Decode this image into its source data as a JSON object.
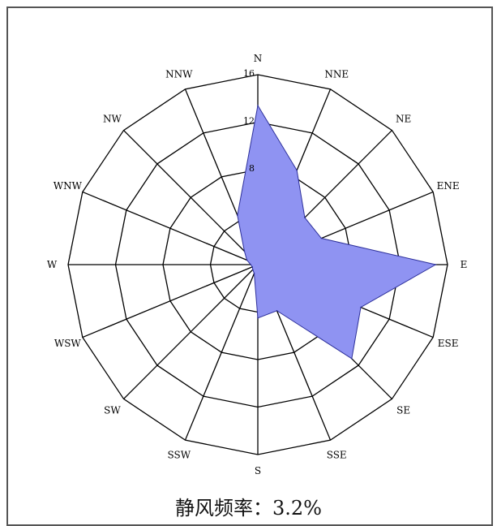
{
  "chart_data": {
    "type": "radar",
    "directions": [
      "N",
      "NNE",
      "NE",
      "ENE",
      "E",
      "ESE",
      "SE",
      "SSE",
      "S",
      "SSW",
      "SW",
      "WSW",
      "W",
      "WNW",
      "NW",
      "NNW"
    ],
    "values": [
      13.4,
      8.6,
      5.6,
      5.8,
      15.0,
      9.4,
      11.2,
      4.2,
      4.5,
      0.8,
      0.6,
      0.5,
      0.6,
      1.0,
      1.6,
      4.5
    ],
    "rlim": [
      0,
      16
    ],
    "radial_ticks": [
      4,
      8,
      12,
      16
    ],
    "radial_tick_labels": [
      "",
      "8",
      "12",
      "16"
    ],
    "grid": true,
    "fill_color": "#8f93f2",
    "stroke_color": "#2c2f9a",
    "calm_caption": "静风频率：3.2%"
  }
}
